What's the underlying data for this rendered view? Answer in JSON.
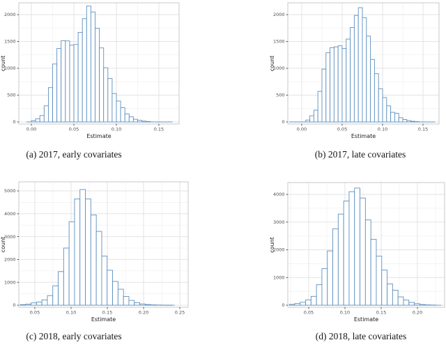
{
  "colors": {
    "bar_stroke": "#5d8fbf",
    "bar_fill": "#ffffff",
    "grid_major": "#e3e3e3",
    "grid_minor": "#f0f0f0",
    "panel_border": "#c8c8c8",
    "tick_mark": "#333333",
    "tick_label": "#4d4d4d",
    "axis_title": "#1a1a1a",
    "caption_text": "#141414",
    "background": "#ffffff"
  },
  "chart_data": [
    {
      "id": "a",
      "type": "bar",
      "subtype": "histogram",
      "caption": "(a) 2017, early covariates",
      "xlabel": "Estimate",
      "ylabel": "count",
      "bins": {
        "first_center": 0.0025,
        "width": 0.005
      },
      "values": [
        25,
        60,
        120,
        300,
        640,
        1080,
        1370,
        1515,
        1510,
        1430,
        1445,
        1670,
        1925,
        2160,
        2050,
        1745,
        1380,
        1010,
        810,
        530,
        390,
        265,
        150,
        95,
        50,
        30,
        15,
        8
      ],
      "baseline": [
        -0.006,
        0.166
      ],
      "xticks": {
        "values": [
          0,
          0.05,
          0.1,
          0.15
        ],
        "labels": [
          "0.00",
          "0.05",
          "0.10",
          "0.15"
        ]
      },
      "yticks": {
        "values": [
          0,
          500,
          1000,
          1500,
          2000
        ],
        "labels": [
          "0",
          "500",
          "1000",
          "1500",
          "2000"
        ]
      },
      "xlim": [
        -0.0148,
        0.1738
      ],
      "ylim": [
        -39,
        2221
      ],
      "grid": true,
      "legend": "none"
    },
    {
      "id": "b",
      "type": "bar",
      "subtype": "histogram",
      "caption": "(b) 2017, late covariates",
      "xlabel": "Estimate",
      "ylabel": "count",
      "bins": {
        "first_center": 0.0075,
        "width": 0.005
      },
      "values": [
        35,
        115,
        220,
        570,
        985,
        1290,
        1385,
        1400,
        1420,
        1370,
        1545,
        1760,
        1985,
        2130,
        1945,
        1600,
        1165,
        900,
        620,
        455,
        300,
        180,
        160,
        80,
        45,
        25,
        12,
        6
      ],
      "baseline": [
        -0.0155,
        0.165
      ],
      "xticks": {
        "values": [
          0,
          0.05,
          0.1,
          0.15
        ],
        "labels": [
          "0.00",
          "0.05",
          "0.10",
          "0.15"
        ]
      },
      "yticks": {
        "values": [
          0,
          500,
          1000,
          1500,
          2000
        ],
        "labels": [
          "0",
          "500",
          "1000",
          "1500",
          "2000"
        ]
      },
      "xlim": [
        -0.0172,
        0.1698
      ],
      "ylim": [
        -39,
        2221
      ],
      "grid": true,
      "legend": "none"
    },
    {
      "id": "c",
      "type": "bar",
      "subtype": "histogram",
      "caption": "(c) 2018, early covariates",
      "xlabel": "Estimate",
      "ylabel": "count",
      "bins": {
        "first_center": 0.0335,
        "width": 0.0075
      },
      "values": [
        25,
        45,
        100,
        140,
        230,
        420,
        850,
        1470,
        2500,
        3650,
        4650,
        5060,
        4650,
        3950,
        3230,
        2150,
        1530,
        1040,
        700,
        380,
        210,
        110,
        55,
        30,
        15,
        8,
        5,
        3
      ],
      "baseline": [
        0.0296,
        0.243
      ],
      "xticks": {
        "values": [
          0.05,
          0.1,
          0.15,
          0.2,
          0.25
        ],
        "labels": [
          "0.05",
          "0.10",
          "0.15",
          "0.20",
          "0.25"
        ]
      },
      "yticks": {
        "values": [
          0,
          1000,
          2000,
          3000,
          4000,
          5000
        ],
        "labels": [
          "0",
          "1000",
          "2000",
          "3000",
          "4000",
          "5000"
        ]
      },
      "xlim": [
        0.0279,
        0.2615
      ],
      "ylim": [
        -91,
        5396
      ],
      "grid": true,
      "legend": "none"
    },
    {
      "id": "d",
      "type": "bar",
      "subtype": "histogram",
      "caption": "(d) 2018, late covariates",
      "xlabel": "Estimate",
      "ylabel": "count",
      "bins": {
        "first_center": 0.027,
        "width": 0.0075
      },
      "values": [
        30,
        60,
        105,
        190,
        320,
        740,
        1320,
        1960,
        2760,
        3290,
        3760,
        4100,
        4230,
        3870,
        3080,
        2380,
        1770,
        1270,
        770,
        540,
        300,
        185,
        100,
        55,
        25,
        12,
        6
      ],
      "baseline": [
        0.0235,
        0.233
      ],
      "xticks": {
        "values": [
          0.05,
          0.1,
          0.15,
          0.2
        ],
        "labels": [
          "0.05",
          "0.10",
          "0.15",
          "0.20"
        ]
      },
      "yticks": {
        "values": [
          0,
          1000,
          2000,
          3000,
          4000
        ],
        "labels": [
          "0",
          "1000",
          "2000",
          "3000",
          "4000"
        ]
      },
      "xlim": [
        0.0212,
        0.2375
      ],
      "ylim": [
        -75,
        4428
      ],
      "grid": true,
      "legend": "none"
    }
  ]
}
